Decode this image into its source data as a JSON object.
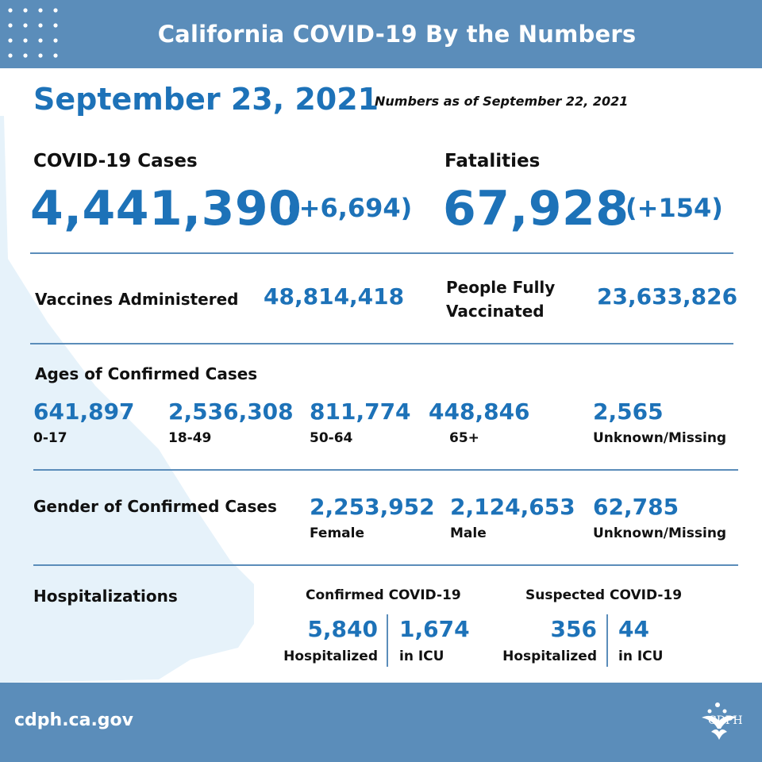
{
  "header": {
    "title": "California COVID-19 By the Numbers"
  },
  "date": "September 23, 2021",
  "as_of": "Numbers as of September 22, 2021",
  "cases": {
    "label": "COVID-19 Cases",
    "value": "4,441,390",
    "delta": "(+6,694)"
  },
  "fatalities": {
    "label": "Fatalities",
    "value": "67,928",
    "delta": "(+154)"
  },
  "vaccines": {
    "administered_label": "Vaccines Administered",
    "administered_value": "48,814,418",
    "fully_label_1": "People Fully",
    "fully_label_2": "Vaccinated",
    "fully_value": "23,633,826"
  },
  "ages": {
    "title": "Ages of Confirmed Cases",
    "groups": [
      {
        "value": "641,897",
        "label": "0-17"
      },
      {
        "value": "2,536,308",
        "label": "18-49"
      },
      {
        "value": "811,774",
        "label": "50-64"
      },
      {
        "value": "448,846",
        "label": "65+"
      },
      {
        "value": "2,565",
        "label": "Unknown/Missing"
      }
    ]
  },
  "gender": {
    "title": "Gender of Confirmed Cases",
    "groups": [
      {
        "value": "2,253,952",
        "label": "Female"
      },
      {
        "value": "2,124,653",
        "label": "Male"
      },
      {
        "value": "62,785",
        "label": "Unknown/Missing"
      }
    ]
  },
  "hospitalizations": {
    "title": "Hospitalizations",
    "confirmed": {
      "title": "Confirmed COVID-19",
      "hospitalized_value": "5,840",
      "hospitalized_label": "Hospitalized",
      "icu_value": "1,674",
      "icu_label": "in ICU"
    },
    "suspected": {
      "title": "Suspected COVID-19",
      "hospitalized_value": "356",
      "hospitalized_label": "Hospitalized",
      "icu_value": "44",
      "icu_label": "in ICU"
    }
  },
  "footer": {
    "url": "cdph.ca.gov",
    "logo_text": "CDPH"
  },
  "colors": {
    "banner": "#5b8dba",
    "accent": "#1d72b8",
    "map": "#e6f2fa"
  }
}
